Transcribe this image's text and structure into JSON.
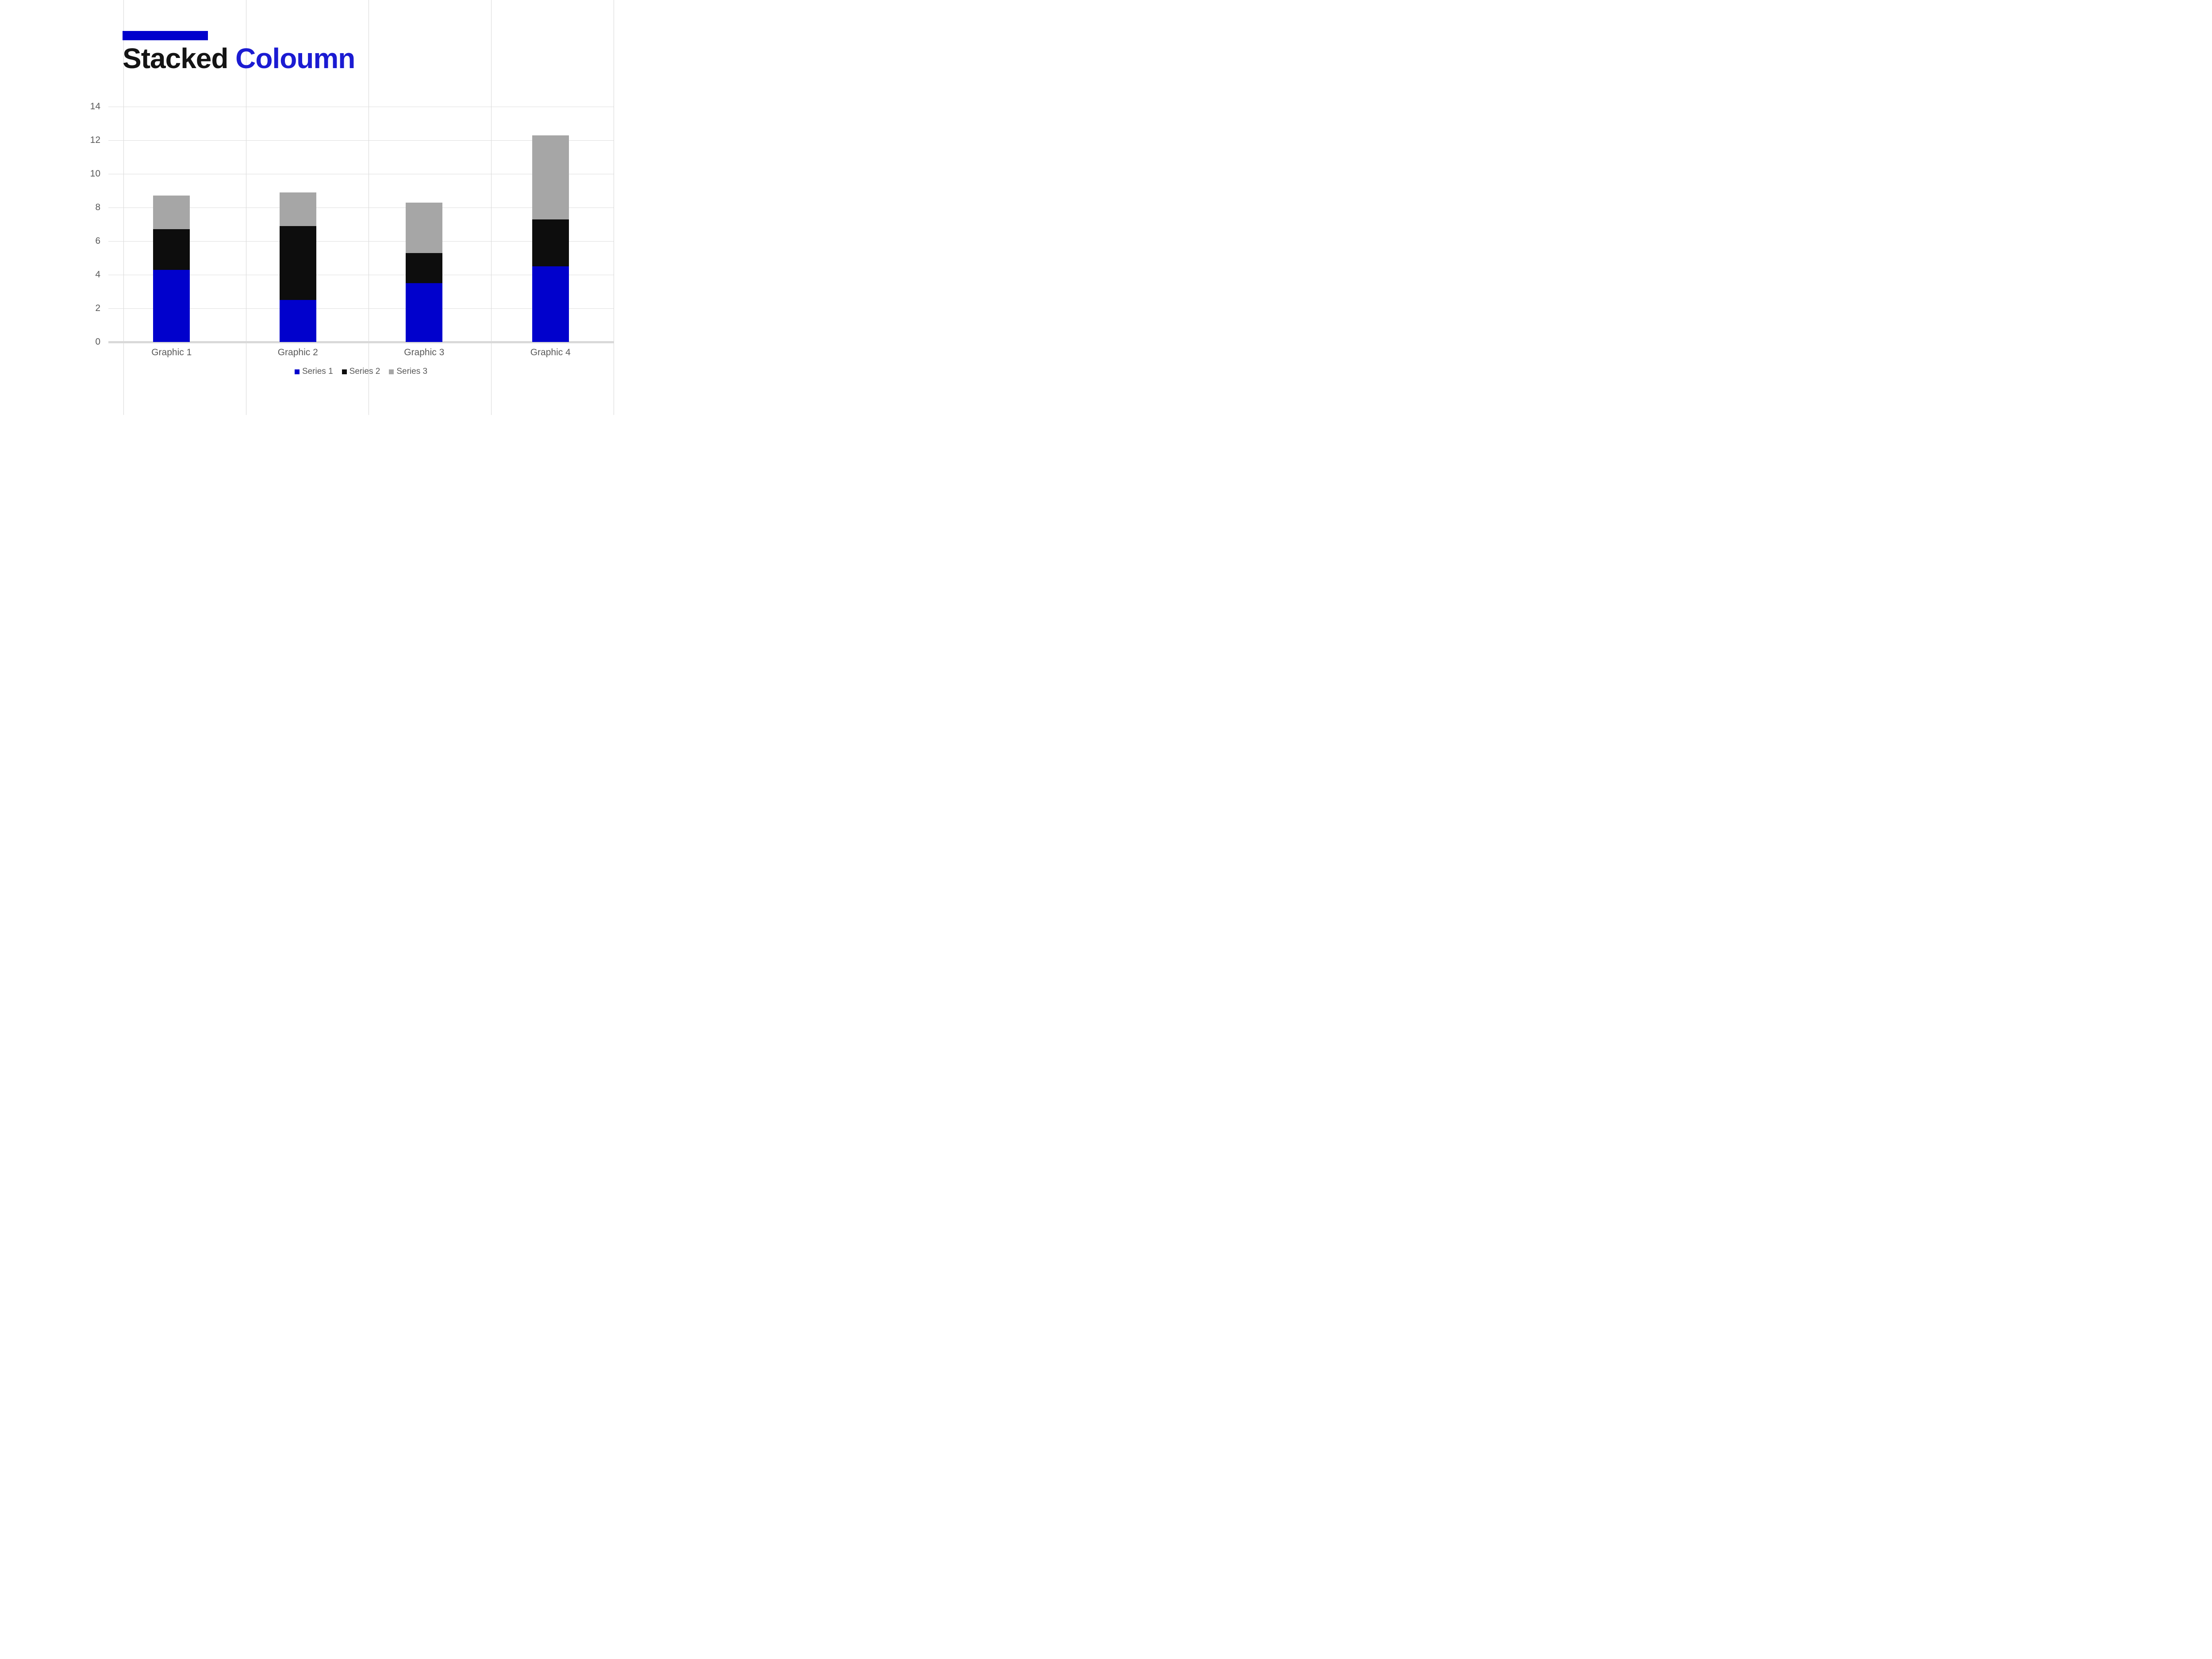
{
  "header": {
    "accent_color": "#0101CC",
    "title_part1": "Stacked",
    "title_part2": "Coloumn",
    "title_part1_color": "#141414",
    "title_part2_color": "#1B1BD2"
  },
  "chart_data": {
    "type": "bar",
    "stacked": true,
    "title": "Stacked Coloumn",
    "categories": [
      "Graphic 1",
      "Graphic 2",
      "Graphic 3",
      "Graphic 4"
    ],
    "series": [
      {
        "name": "Series 1",
        "color": "#0101CC",
        "values": [
          4.3,
          2.5,
          3.5,
          4.5
        ]
      },
      {
        "name": "Series 2",
        "color": "#0D0D0D",
        "values": [
          2.4,
          4.4,
          1.8,
          2.8
        ]
      },
      {
        "name": "Series 3",
        "color": "#A6A6A6",
        "values": [
          2.0,
          2.0,
          3.0,
          5.0
        ]
      }
    ],
    "stack_totals": [
      8.7,
      8.9,
      8.3,
      12.3
    ],
    "ylim": [
      0,
      14
    ],
    "ytick_step": 2,
    "yticks": [
      "0",
      "2",
      "4",
      "6",
      "8",
      "10",
      "12",
      "14"
    ],
    "grid": "horizontal",
    "legend_position": "bottom",
    "axis_text_color": "#595959",
    "gridline_color": "#DEDEDE",
    "axis_line_color": "#D9D9D9",
    "background_guide_color": "#D6D6D6"
  }
}
